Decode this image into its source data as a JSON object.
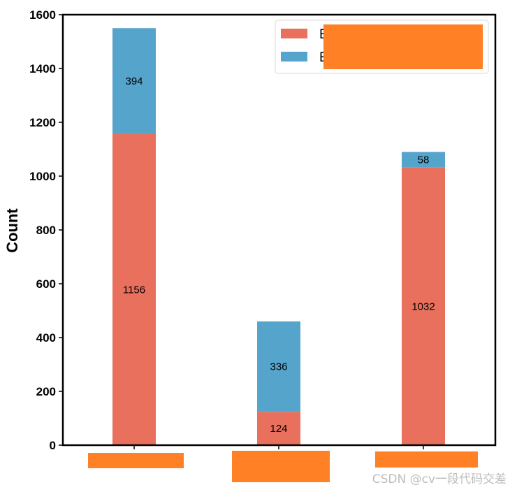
{
  "chart_data": {
    "type": "bar",
    "stacked": true,
    "categories": [
      "",
      "",
      ""
    ],
    "series": [
      {
        "name": "",
        "values": [
          1156,
          124,
          1032
        ],
        "color": "#e8705c"
      },
      {
        "name": "",
        "values": [
          394,
          336,
          58
        ],
        "color": "#55a4cc"
      }
    ],
    "title": "",
    "xlabel": "",
    "ylabel": "Count",
    "ylim": [
      0,
      1600
    ],
    "yticks": [
      0,
      200,
      400,
      600,
      800,
      1000,
      1200,
      1400,
      1600
    ],
    "grid": false,
    "legend_position": "top-right",
    "legend_text_prefix": [
      "E",
      "E"
    ],
    "redaction_color": "#ff8025"
  },
  "watermark": "CSDN @cv一段代码交差"
}
